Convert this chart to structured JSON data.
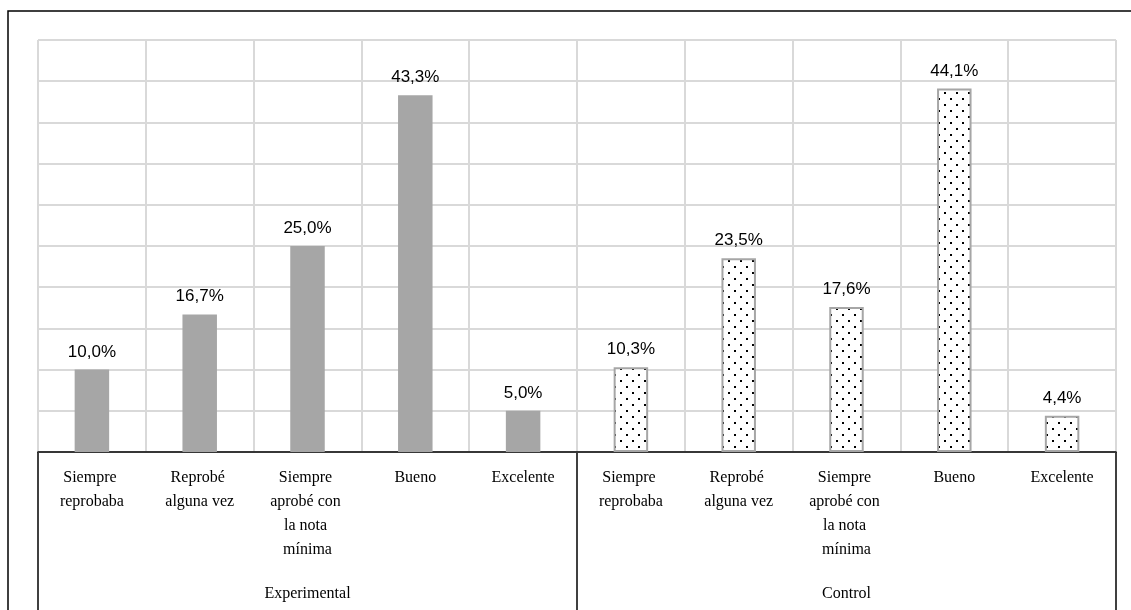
{
  "chart_data": {
    "type": "bar",
    "categories": [
      "Siempre reprobaba",
      "Reprobé alguna vez",
      "Siempre aprobé con la nota mínima",
      "Bueno",
      "Excelente",
      "Siempre reprobaba",
      "Reprobé alguna vez",
      "Siempre aprobé con la nota mínima",
      "Bueno",
      "Excelente"
    ],
    "series": [
      {
        "color": "#a6a6a6",
        "values": [
          10.0,
          16.7,
          25.0,
          43.3,
          5.0,
          null,
          null,
          null,
          null,
          null
        ],
        "value_labels": [
          "10,0%",
          "16,7%",
          "25,0%",
          "43,3%",
          "5,0%",
          null,
          null,
          null,
          null,
          null
        ]
      },
      {
        "color": "#a6a6a6",
        "values": [
          null,
          null,
          null,
          null,
          null,
          10.3,
          23.5,
          17.6,
          44.1,
          4.4
        ],
        "value_labels": [
          null,
          null,
          null,
          null,
          null,
          "10,3%",
          "23,5%",
          "17,6%",
          "44,1%",
          "4,4%"
        ]
      }
    ],
    "ylim": [
      0,
      50
    ],
    "yticks": [
      {
        "value": 0,
        "label": null
      },
      {
        "value": 5,
        "label": null
      },
      {
        "value": 10,
        "label": null
      },
      {
        "value": 15,
        "label": null
      },
      {
        "value": 20,
        "label": null
      },
      {
        "value": 25,
        "label": null
      },
      {
        "value": 30,
        "label": null
      },
      {
        "value": 35,
        "label": null
      },
      {
        "value": 40,
        "label": null
      },
      {
        "value": 45,
        "label": null
      },
      {
        "value": 50,
        "label": null
      }
    ],
    "annotations": [
      "Experimental",
      "Control"
    ],
    "tick_labels": "x",
    "grid": true
  }
}
